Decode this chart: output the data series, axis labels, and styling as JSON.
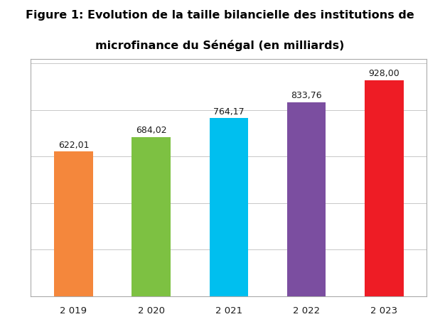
{
  "title_line1": "Figure 1: Evolution de la taille bilancielle des institutions de",
  "title_line2": "microfinance du Sénégal (en milliards)",
  "categories": [
    "2 019",
    "2 020",
    "2 021",
    "2 022",
    "2 023"
  ],
  "values": [
    622.01,
    684.02,
    764.17,
    833.76,
    928.0
  ],
  "labels": [
    "622,01",
    "684,02",
    "764,17",
    "833,76",
    "928,00"
  ],
  "bar_colors": [
    "#F4873C",
    "#7DC142",
    "#00BFEF",
    "#7B4EA0",
    "#EE1C25"
  ],
  "ylim": [
    0,
    1020
  ],
  "background_color": "#ffffff",
  "plot_bg_color": "#ffffff",
  "title_fontsize": 11.5,
  "label_fontsize": 9,
  "tick_fontsize": 9.5,
  "grid_color": "#c8c8c8",
  "border_color": "#aaaaaa"
}
